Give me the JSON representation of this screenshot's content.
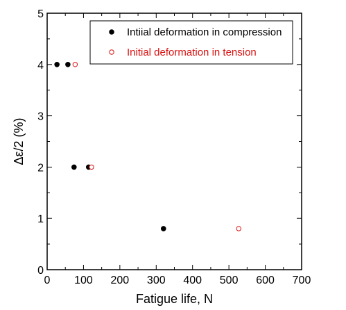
{
  "chart_data": {
    "type": "scatter",
    "title": "",
    "xlabel": "Fatigue life, N",
    "ylabel": "Δε/2 (%)",
    "xlim": [
      0,
      700
    ],
    "ylim": [
      0,
      5
    ],
    "x_ticks": [
      "0",
      "100",
      "200",
      "300",
      "400",
      "500",
      "600",
      "700"
    ],
    "y_ticks": [
      "0",
      "1",
      "2",
      "3",
      "4",
      "5"
    ],
    "legend_position": "top-right",
    "grid": false,
    "series": [
      {
        "name": "Intiial deformation in compression",
        "marker": "filled-circle",
        "color": "#000000",
        "points": [
          {
            "x": 27,
            "y": 4
          },
          {
            "x": 57,
            "y": 4
          },
          {
            "x": 74,
            "y": 2
          },
          {
            "x": 114,
            "y": 2
          },
          {
            "x": 320,
            "y": 0.8
          }
        ]
      },
      {
        "name": "Initial deformation in tension",
        "marker": "open-circle",
        "color": "#dd1111",
        "points": [
          {
            "x": 77,
            "y": 4
          },
          {
            "x": 122,
            "y": 2
          },
          {
            "x": 527,
            "y": 0.8
          }
        ]
      }
    ]
  }
}
